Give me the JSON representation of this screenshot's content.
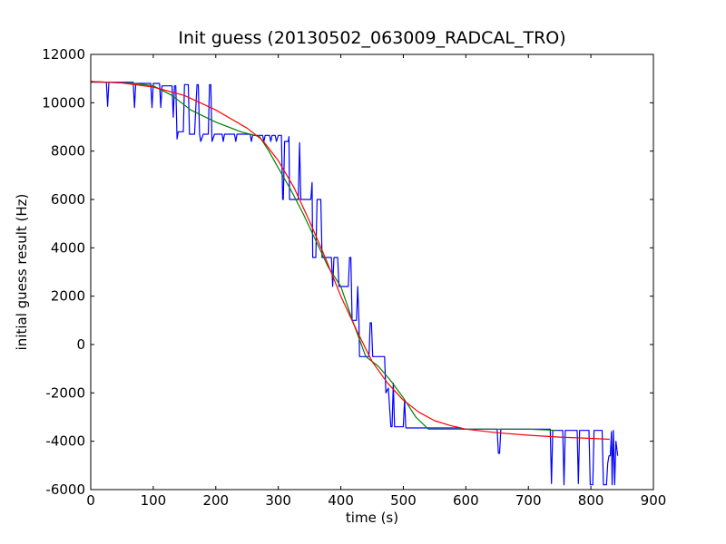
{
  "chart_data": {
    "type": "line",
    "title": "Init guess (20130502_063009_RADCAL_TRO)",
    "xlabel": "time (s)",
    "ylabel": "initial guess result (Hz)",
    "xlim": [
      0,
      900
    ],
    "ylim": [
      -6000,
      12000
    ],
    "xticks": [
      0,
      100,
      200,
      300,
      400,
      500,
      600,
      700,
      800,
      900
    ],
    "yticks": [
      -6000,
      -4000,
      -2000,
      0,
      2000,
      4000,
      6000,
      8000,
      10000,
      12000
    ],
    "grid": false,
    "legend": "none",
    "series": [
      {
        "color": "#0000ff",
        "points": [
          [
            0,
            10850
          ],
          [
            25,
            10850
          ],
          [
            27,
            9850
          ],
          [
            29,
            10850
          ],
          [
            68,
            10850
          ],
          [
            70,
            9800
          ],
          [
            72,
            10800
          ],
          [
            96,
            10800
          ],
          [
            98,
            9800
          ],
          [
            100,
            10800
          ],
          [
            110,
            10800
          ],
          [
            112,
            9800
          ],
          [
            114,
            10700
          ],
          [
            130,
            10700
          ],
          [
            132,
            9400
          ],
          [
            134,
            10700
          ],
          [
            136,
            10700
          ],
          [
            138,
            8500
          ],
          [
            140,
            8800
          ],
          [
            148,
            8800
          ],
          [
            150,
            10750
          ],
          [
            156,
            10750
          ],
          [
            158,
            8700
          ],
          [
            166,
            8700
          ],
          [
            168,
            9750
          ],
          [
            170,
            10750
          ],
          [
            172,
            10750
          ],
          [
            174,
            8700
          ],
          [
            176,
            8400
          ],
          [
            180,
            8700
          ],
          [
            188,
            8700
          ],
          [
            190,
            10750
          ],
          [
            192,
            10750
          ],
          [
            194,
            8400
          ],
          [
            198,
            8700
          ],
          [
            210,
            8700
          ],
          [
            212,
            8400
          ],
          [
            214,
            8700
          ],
          [
            230,
            8700
          ],
          [
            232,
            8400
          ],
          [
            234,
            8700
          ],
          [
            255,
            8700
          ],
          [
            257,
            8400
          ],
          [
            259,
            8650
          ],
          [
            275,
            8650
          ],
          [
            277,
            8400
          ],
          [
            279,
            8650
          ],
          [
            286,
            8650
          ],
          [
            288,
            8400
          ],
          [
            290,
            8650
          ],
          [
            295,
            8650
          ],
          [
            297,
            8400
          ],
          [
            300,
            8650
          ],
          [
            305,
            8650
          ],
          [
            307,
            6000
          ],
          [
            308,
            6000
          ],
          [
            310,
            8400
          ],
          [
            316,
            8400
          ],
          [
            317,
            8600
          ],
          [
            318,
            6000
          ],
          [
            332,
            6000
          ],
          [
            334,
            8350
          ],
          [
            336,
            6000
          ],
          [
            352,
            6000
          ],
          [
            354,
            6700
          ],
          [
            355,
            3600
          ],
          [
            360,
            3600
          ],
          [
            362,
            6000
          ],
          [
            368,
            6000
          ],
          [
            370,
            3600
          ],
          [
            385,
            3600
          ],
          [
            387,
            2400
          ],
          [
            389,
            3600
          ],
          [
            395,
            3600
          ],
          [
            397,
            2400
          ],
          [
            412,
            2400
          ],
          [
            414,
            3600
          ],
          [
            416,
            3600
          ],
          [
            418,
            1000
          ],
          [
            425,
            1000
          ],
          [
            427,
            2400
          ],
          [
            429,
            1000
          ],
          [
            430,
            -500
          ],
          [
            445,
            -500
          ],
          [
            447,
            900
          ],
          [
            449,
            900
          ],
          [
            451,
            -500
          ],
          [
            470,
            -500
          ],
          [
            472,
            -2000
          ],
          [
            476,
            -1800
          ],
          [
            480,
            -3400
          ],
          [
            482,
            -3400
          ],
          [
            484,
            -1600
          ],
          [
            486,
            -3400
          ],
          [
            500,
            -3400
          ],
          [
            502,
            -2300
          ],
          [
            504,
            -3450
          ],
          [
            590,
            -3450
          ],
          [
            592,
            -3500
          ],
          [
            650,
            -3500
          ],
          [
            652,
            -4500
          ],
          [
            654,
            -4500
          ],
          [
            656,
            -3500
          ],
          [
            735,
            -3500
          ],
          [
            737,
            -5750
          ],
          [
            739,
            -3550
          ],
          [
            755,
            -3550
          ],
          [
            757,
            -5800
          ],
          [
            759,
            -3550
          ],
          [
            778,
            -3550
          ],
          [
            780,
            -5750
          ],
          [
            782,
            -3550
          ],
          [
            797,
            -3550
          ],
          [
            799,
            -5800
          ],
          [
            803,
            -5800
          ],
          [
            805,
            -3550
          ],
          [
            818,
            -3550
          ],
          [
            820,
            -5800
          ],
          [
            825,
            -5800
          ],
          [
            827,
            -4900
          ],
          [
            829,
            -4600
          ],
          [
            831,
            -4600
          ],
          [
            833,
            -3600
          ],
          [
            834,
            -5800
          ],
          [
            836,
            -3550
          ],
          [
            838,
            -5800
          ],
          [
            840,
            -4000
          ],
          [
            843,
            -4600
          ]
        ]
      },
      {
        "color": "#008000",
        "points": [
          [
            0,
            10880
          ],
          [
            70,
            10800
          ],
          [
            100,
            10700
          ],
          [
            130,
            10300
          ],
          [
            160,
            9700
          ],
          [
            200,
            9200
          ],
          [
            240,
            8800
          ],
          [
            270,
            8600
          ],
          [
            285,
            8000
          ],
          [
            300,
            7300
          ],
          [
            320,
            6400
          ],
          [
            340,
            5400
          ],
          [
            360,
            4300
          ],
          [
            380,
            3200
          ],
          [
            400,
            2400
          ],
          [
            420,
            900
          ],
          [
            440,
            -500
          ],
          [
            460,
            -900
          ],
          [
            480,
            -1500
          ],
          [
            500,
            -2200
          ],
          [
            520,
            -3000
          ],
          [
            540,
            -3500
          ],
          [
            560,
            -3500
          ],
          [
            600,
            -3500
          ],
          [
            650,
            -3500
          ],
          [
            700,
            -3500
          ],
          [
            745,
            -3550
          ]
        ]
      },
      {
        "color": "#ff0000",
        "points": [
          [
            0,
            10880
          ],
          [
            50,
            10820
          ],
          [
            100,
            10650
          ],
          [
            150,
            10300
          ],
          [
            200,
            9700
          ],
          [
            250,
            8950
          ],
          [
            275,
            8450
          ],
          [
            300,
            7600
          ],
          [
            325,
            6500
          ],
          [
            350,
            5100
          ],
          [
            375,
            3600
          ],
          [
            400,
            2000
          ],
          [
            425,
            600
          ],
          [
            450,
            -700
          ],
          [
            475,
            -1600
          ],
          [
            500,
            -2300
          ],
          [
            525,
            -2800
          ],
          [
            550,
            -3150
          ],
          [
            575,
            -3350
          ],
          [
            600,
            -3500
          ],
          [
            650,
            -3650
          ],
          [
            700,
            -3750
          ],
          [
            750,
            -3830
          ],
          [
            800,
            -3880
          ],
          [
            830,
            -3920
          ]
        ]
      }
    ]
  }
}
